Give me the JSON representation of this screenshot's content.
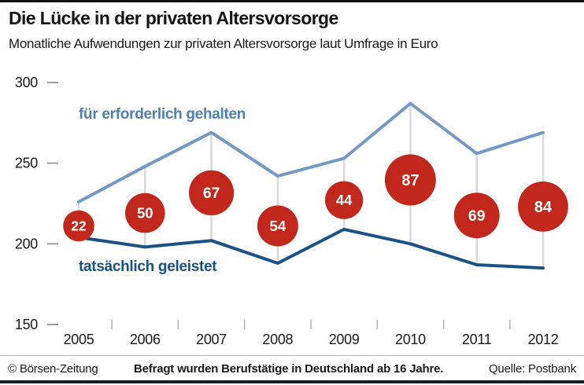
{
  "chart_data": {
    "type": "line",
    "title": "Die Lücke in der privaten Altersvorsorge",
    "subtitle": "Monatliche Aufwendungen zur privaten Altersvorsorge laut Umfrage in Euro",
    "x_labels": [
      "2005",
      "2006",
      "2007",
      "2008",
      "2009",
      "2010",
      "2011",
      "2012"
    ],
    "series": [
      {
        "name": "für erforderlich gehalten",
        "values": [
          226,
          248,
          269,
          242,
          253,
          287,
          256,
          269
        ],
        "color": "#7499c3",
        "label_color": "#4e80b2"
      },
      {
        "name": "tatsächlich geleistet",
        "values": [
          204,
          198,
          202,
          188,
          209,
          200,
          187,
          185
        ],
        "color": "#1a5286",
        "label_color": "#175082"
      }
    ],
    "gap_bubbles": {
      "values": [
        22,
        50,
        67,
        54,
        44,
        87,
        69,
        84
      ],
      "color": "#c1281b",
      "text_color": "#ffffff"
    },
    "ylim": [
      150,
      300
    ],
    "yticks": [
      300,
      250,
      200,
      150
    ],
    "xlabel": "",
    "ylabel": "",
    "grid": {
      "vertical_gap_connectors": true,
      "connector_color": "#d9d9d9",
      "horizontal_gridlines": false
    },
    "axis_colors": {
      "tick_dash": "#9e9e9e",
      "x_tick": "#b3b3b3",
      "label": "#1a1a1a"
    },
    "legend_position": "inline-labels"
  },
  "footer": {
    "copyright": "© Börsen-Zeitung",
    "note": "Befragt wurden Berufstätige in Deutschland ab 16 Jahre.",
    "source": "Quelle: Postbank"
  }
}
